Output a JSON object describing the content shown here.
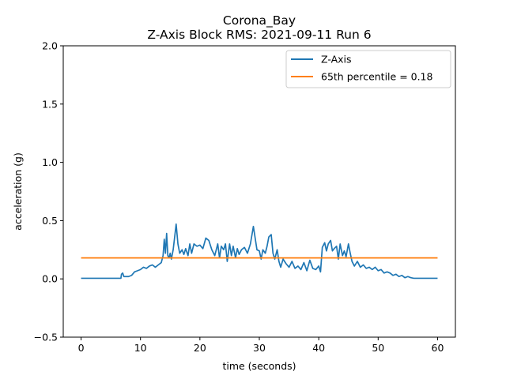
{
  "chart_data": {
    "type": "line",
    "title": "Corona_Bay",
    "subtitle": "Z-Axis Block RMS: 2021-09-11 Run 6",
    "xlabel": "time (seconds)",
    "ylabel": "acceleration (g)",
    "xlim": [
      -3,
      63
    ],
    "ylim": [
      -0.5,
      2.0
    ],
    "xticks": [
      0,
      10,
      20,
      30,
      40,
      50,
      60
    ],
    "xtick_labels": [
      "0",
      "10",
      "20",
      "30",
      "40",
      "50",
      "60"
    ],
    "yticks": [
      -0.5,
      0.0,
      0.5,
      1.0,
      1.5,
      2.0
    ],
    "ytick_labels": [
      "−0.5",
      "0.0",
      "0.5",
      "1.0",
      "1.5",
      "2.0"
    ],
    "grid": false,
    "legend_position": "top-right",
    "series": [
      {
        "name": "Z-Axis",
        "color": "#1f77b4",
        "x": [
          0,
          6.7,
          6.8,
          7.0,
          7.2,
          8.0,
          8.5,
          9.0,
          9.5,
          10.0,
          10.5,
          11.0,
          11.5,
          12.0,
          12.5,
          13.0,
          13.5,
          13.8,
          14.0,
          14.2,
          14.4,
          14.6,
          14.8,
          15.0,
          15.2,
          15.5,
          15.8,
          16.0,
          16.3,
          16.6,
          17.0,
          17.3,
          17.6,
          18.0,
          18.3,
          18.6,
          19.0,
          19.5,
          20.0,
          20.5,
          21.0,
          21.5,
          22.0,
          22.5,
          23.0,
          23.3,
          23.6,
          24.0,
          24.3,
          24.6,
          25.0,
          25.3,
          25.6,
          26.0,
          26.3,
          26.6,
          27.0,
          27.5,
          28.0,
          28.5,
          29.0,
          29.3,
          29.6,
          30.0,
          30.3,
          30.6,
          31.0,
          31.3,
          31.6,
          32.0,
          32.3,
          32.6,
          33.0,
          33.3,
          33.6,
          34.0,
          34.5,
          35.0,
          35.5,
          36.0,
          36.5,
          37.0,
          37.5,
          38.0,
          38.5,
          39.0,
          39.5,
          40.0,
          40.3,
          40.6,
          41.0,
          41.3,
          41.6,
          42.0,
          42.3,
          42.6,
          43.0,
          43.3,
          43.6,
          44.0,
          44.3,
          44.6,
          45.0,
          45.3,
          45.6,
          46.0,
          46.5,
          47.0,
          47.5,
          48.0,
          48.5,
          49.0,
          49.5,
          50.0,
          50.5,
          51.0,
          51.5,
          52.0,
          52.5,
          53.0,
          53.5,
          54.0,
          54.5,
          55.0,
          55.5,
          56.0,
          56.5,
          57.0,
          58.0,
          59.0,
          60.0
        ],
        "y": [
          0.005,
          0.005,
          0.04,
          0.05,
          0.02,
          0.02,
          0.03,
          0.06,
          0.07,
          0.08,
          0.1,
          0.09,
          0.11,
          0.12,
          0.1,
          0.12,
          0.14,
          0.2,
          0.34,
          0.22,
          0.39,
          0.2,
          0.18,
          0.22,
          0.17,
          0.25,
          0.38,
          0.47,
          0.3,
          0.22,
          0.25,
          0.21,
          0.26,
          0.2,
          0.3,
          0.22,
          0.3,
          0.28,
          0.29,
          0.26,
          0.35,
          0.33,
          0.25,
          0.2,
          0.3,
          0.18,
          0.28,
          0.25,
          0.3,
          0.15,
          0.3,
          0.2,
          0.28,
          0.18,
          0.26,
          0.21,
          0.25,
          0.27,
          0.22,
          0.3,
          0.45,
          0.35,
          0.25,
          0.24,
          0.17,
          0.25,
          0.22,
          0.28,
          0.36,
          0.38,
          0.22,
          0.17,
          0.25,
          0.15,
          0.1,
          0.17,
          0.13,
          0.1,
          0.15,
          0.09,
          0.11,
          0.08,
          0.14,
          0.07,
          0.16,
          0.09,
          0.08,
          0.11,
          0.06,
          0.27,
          0.31,
          0.24,
          0.3,
          0.33,
          0.24,
          0.26,
          0.28,
          0.17,
          0.3,
          0.2,
          0.24,
          0.19,
          0.3,
          0.22,
          0.15,
          0.11,
          0.15,
          0.1,
          0.12,
          0.09,
          0.1,
          0.08,
          0.1,
          0.07,
          0.08,
          0.05,
          0.06,
          0.05,
          0.03,
          0.04,
          0.02,
          0.03,
          0.01,
          0.02,
          0.01,
          0.005,
          0.005,
          0.005,
          0.005,
          0.005,
          0.005
        ]
      },
      {
        "name": "65th percentile = 0.18",
        "color": "#ff7f0e",
        "x": [
          0,
          60
        ],
        "y": [
          0.18,
          0.18
        ]
      }
    ]
  }
}
